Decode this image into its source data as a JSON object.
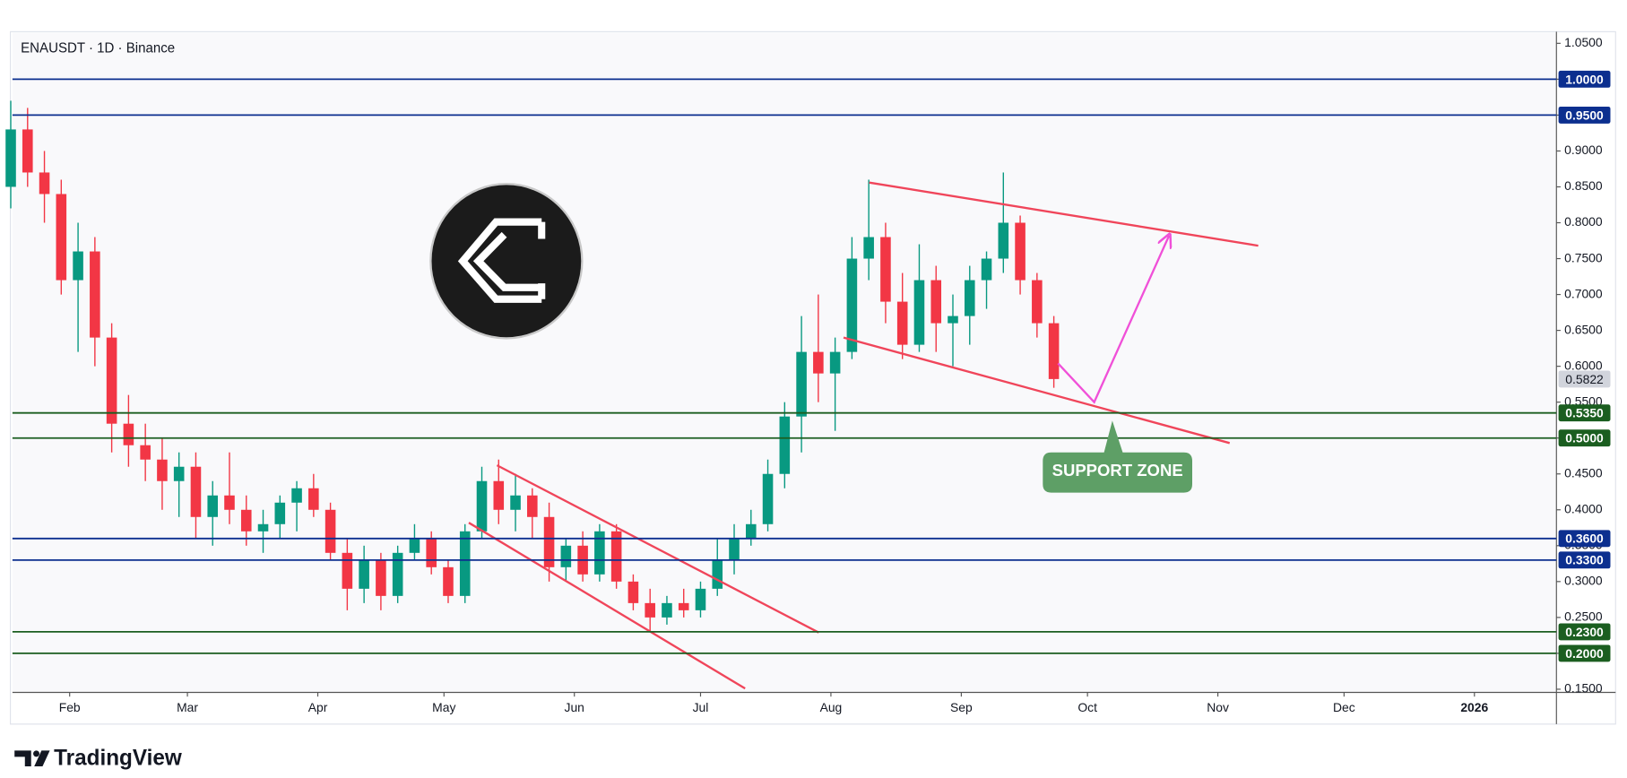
{
  "chart_data": {
    "type": "candlestick",
    "title": "ENAUSDT · 1D · Binance",
    "brand": "TradingView",
    "x": [
      18,
      22,
      26,
      30,
      34,
      38,
      42,
      46,
      50,
      54,
      58,
      62,
      66,
      70,
      74,
      78,
      82,
      86,
      90,
      94,
      98,
      102,
      106,
      110,
      114,
      118,
      122,
      126,
      130,
      134,
      138,
      142,
      146,
      150,
      154,
      158,
      162,
      166,
      170,
      174,
      178,
      182,
      186,
      190,
      194,
      198,
      202,
      206,
      210,
      214,
      218,
      222,
      226,
      230,
      234,
      238,
      242,
      246,
      250,
      254,
      258,
      262,
      266
    ],
    "open": [
      0.85,
      0.93,
      0.87,
      0.84,
      0.72,
      0.76,
      0.64,
      0.52,
      0.49,
      0.47,
      0.44,
      0.46,
      0.39,
      0.42,
      0.4,
      0.37,
      0.38,
      0.41,
      0.43,
      0.4,
      0.34,
      0.29,
      0.33,
      0.28,
      0.34,
      0.36,
      0.32,
      0.28,
      0.37,
      0.44,
      0.4,
      0.42,
      0.39,
      0.32,
      0.35,
      0.31,
      0.37,
      0.3,
      0.27,
      0.25,
      0.27,
      0.26,
      0.29,
      0.33,
      0.36,
      0.38,
      0.45,
      0.53,
      0.62,
      0.59,
      0.62,
      0.75,
      0.78,
      0.69,
      0.63,
      0.72,
      0.66,
      0.67,
      0.72,
      0.75,
      0.8,
      0.72,
      0.66
    ],
    "high": [
      0.97,
      0.96,
      0.9,
      0.86,
      0.8,
      0.78,
      0.66,
      0.56,
      0.52,
      0.5,
      0.48,
      0.48,
      0.44,
      0.48,
      0.42,
      0.4,
      0.42,
      0.44,
      0.45,
      0.41,
      0.36,
      0.35,
      0.34,
      0.35,
      0.38,
      0.37,
      0.33,
      0.38,
      0.46,
      0.47,
      0.45,
      0.43,
      0.41,
      0.36,
      0.37,
      0.38,
      0.38,
      0.31,
      0.29,
      0.28,
      0.29,
      0.3,
      0.36,
      0.38,
      0.4,
      0.47,
      0.55,
      0.67,
      0.7,
      0.64,
      0.78,
      0.86,
      0.8,
      0.73,
      0.77,
      0.74,
      0.7,
      0.74,
      0.76,
      0.87,
      0.81,
      0.73,
      0.67
    ],
    "low": [
      0.82,
      0.85,
      0.8,
      0.7,
      0.62,
      0.6,
      0.48,
      0.46,
      0.44,
      0.4,
      0.39,
      0.36,
      0.35,
      0.38,
      0.35,
      0.34,
      0.36,
      0.37,
      0.39,
      0.33,
      0.26,
      0.27,
      0.26,
      0.27,
      0.33,
      0.31,
      0.27,
      0.27,
      0.36,
      0.38,
      0.37,
      0.36,
      0.3,
      0.3,
      0.3,
      0.3,
      0.29,
      0.26,
      0.23,
      0.24,
      0.25,
      0.25,
      0.28,
      0.31,
      0.35,
      0.37,
      0.43,
      0.48,
      0.55,
      0.51,
      0.61,
      0.72,
      0.66,
      0.61,
      0.62,
      0.62,
      0.6,
      0.63,
      0.68,
      0.73,
      0.7,
      0.64,
      0.57
    ],
    "close": [
      0.93,
      0.87,
      0.84,
      0.72,
      0.76,
      0.64,
      0.52,
      0.49,
      0.47,
      0.44,
      0.46,
      0.39,
      0.42,
      0.4,
      0.37,
      0.38,
      0.41,
      0.43,
      0.4,
      0.34,
      0.29,
      0.33,
      0.28,
      0.34,
      0.36,
      0.32,
      0.28,
      0.37,
      0.44,
      0.4,
      0.42,
      0.39,
      0.32,
      0.35,
      0.31,
      0.37,
      0.3,
      0.27,
      0.25,
      0.27,
      0.26,
      0.29,
      0.33,
      0.36,
      0.38,
      0.45,
      0.53,
      0.62,
      0.59,
      0.62,
      0.75,
      0.78,
      0.69,
      0.63,
      0.72,
      0.66,
      0.67,
      0.72,
      0.75,
      0.8,
      0.72,
      0.66,
      0.5822
    ],
    "up_color": "#089981",
    "down_color": "#f23645",
    "last_price_label": "0.5822",
    "xlim": [
      18.4,
      385.5
    ],
    "ylim": [
      0.1456,
      1.0647
    ],
    "xticks": [
      {
        "value": 32,
        "label": "Feb"
      },
      {
        "value": 60,
        "label": "Mar"
      },
      {
        "value": 91,
        "label": "Apr"
      },
      {
        "value": 121,
        "label": "May"
      },
      {
        "value": 152,
        "label": "Jun"
      },
      {
        "value": 182,
        "label": "Jul"
      },
      {
        "value": 213,
        "label": "Aug"
      },
      {
        "value": 244,
        "label": "Sep"
      },
      {
        "value": 274,
        "label": "Oct"
      },
      {
        "value": 305,
        "label": "Nov"
      },
      {
        "value": 335,
        "label": "Dec"
      },
      {
        "value": 366,
        "label": "2026"
      }
    ],
    "yticks": [
      {
        "value": 0.15,
        "label": "0.1500"
      },
      {
        "value": 0.2,
        "label": "0.2000"
      },
      {
        "value": 0.25,
        "label": "0.2500"
      },
      {
        "value": 0.3,
        "label": "0.3000"
      },
      {
        "value": 0.35,
        "label": "0.3500"
      },
      {
        "value": 0.4,
        "label": "0.4000"
      },
      {
        "value": 0.45,
        "label": "0.4500"
      },
      {
        "value": 0.5,
        "label": "0.5000"
      },
      {
        "value": 0.55,
        "label": "0.5500"
      },
      {
        "value": 0.6,
        "label": "0.6000"
      },
      {
        "value": 0.65,
        "label": "0.6500"
      },
      {
        "value": 0.7,
        "label": "0.7000"
      },
      {
        "value": 0.75,
        "label": "0.7500"
      },
      {
        "value": 0.8,
        "label": "0.8000"
      },
      {
        "value": 0.85,
        "label": "0.8500"
      },
      {
        "value": 0.9,
        "label": "0.9000"
      },
      {
        "value": 0.95,
        "label": "0.9500"
      },
      {
        "value": 1.0,
        "label": "1.0000"
      },
      {
        "value": 1.05,
        "label": "1.0500"
      }
    ],
    "grid": false,
    "levels": [
      {
        "value": 1.0,
        "label": "1.0000",
        "color": "#0c2f8f"
      },
      {
        "value": 0.95,
        "label": "0.9500",
        "color": "#0c2f8f"
      },
      {
        "value": 0.535,
        "label": "0.5350",
        "color": "#1b5e20"
      },
      {
        "value": 0.5,
        "label": "0.5000",
        "color": "#1b5e20"
      },
      {
        "value": 0.36,
        "label": "0.3600",
        "color": "#0c2f8f"
      },
      {
        "value": 0.33,
        "label": "0.3300",
        "color": "#0c2f8f"
      },
      {
        "value": 0.23,
        "label": "0.2300",
        "color": "#1b5e20"
      },
      {
        "value": 0.2,
        "label": "0.2000",
        "color": "#1b5e20"
      }
    ],
    "trendlines": [
      {
        "color": "#f0455a",
        "points": [
          [
            222.1,
            0.856
          ],
          [
            314.6,
            0.768
          ]
        ]
      },
      {
        "color": "#f0455a",
        "points": [
          [
            216.0,
            0.64
          ],
          [
            307.8,
            0.493
          ]
        ]
      },
      {
        "color": "#f0455a",
        "points": [
          [
            133.6,
            0.462
          ],
          [
            210.1,
            0.229
          ]
        ]
      },
      {
        "color": "#f0455a",
        "points": [
          [
            126.9,
            0.382
          ],
          [
            192.6,
            0.151
          ]
        ]
      }
    ],
    "projection": {
      "color": "#f050d8",
      "points": [
        [
          267.0,
          0.604
        ],
        [
          275.6,
          0.55
        ],
        [
          293.4,
          0.782
        ]
      ]
    },
    "callout": "SUPPORT ZONE"
  }
}
